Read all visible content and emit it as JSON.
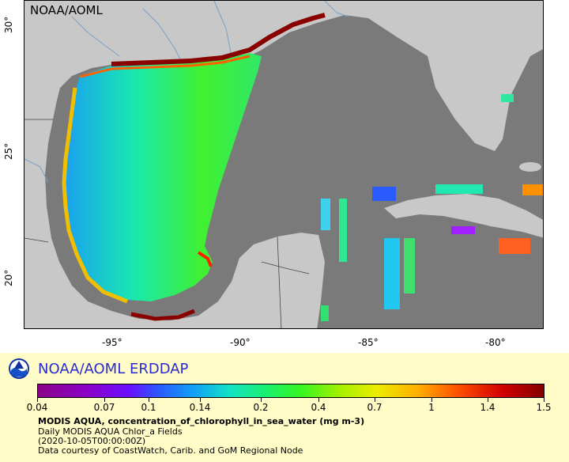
{
  "watermark": "NOAA/AOML",
  "map": {
    "y_axis_labels": [
      "30°",
      "25°",
      "20°"
    ],
    "x_axis_labels": [
      "-95°",
      "-90°",
      "-85°",
      "-80°"
    ],
    "colors": {
      "ocean_nodata": "#7a7a7a",
      "land": "#c8c8c8",
      "rivers": "#78a0c8",
      "borders": "#444444"
    }
  },
  "legend": {
    "title": "NOAA/AOML ERDDAP",
    "logo_icon": "noaa-logo-icon",
    "colorbar_ticks": [
      "0.04",
      "0.07",
      "0.1",
      "0.14",
      "0.2",
      "0.4",
      "0.7",
      "1",
      "1.4",
      "1.5"
    ],
    "variable": "MODIS AQUA, concentration_of_chlorophyll_in_sea_water (mg m-3)",
    "dataset": "Daily MODIS AQUA Chlor_a Fields",
    "time": "(2020-10-05T00:00:00Z)",
    "credit": "Data courtesy of CoastWatch, Carib. and GoM Regional Node"
  }
}
